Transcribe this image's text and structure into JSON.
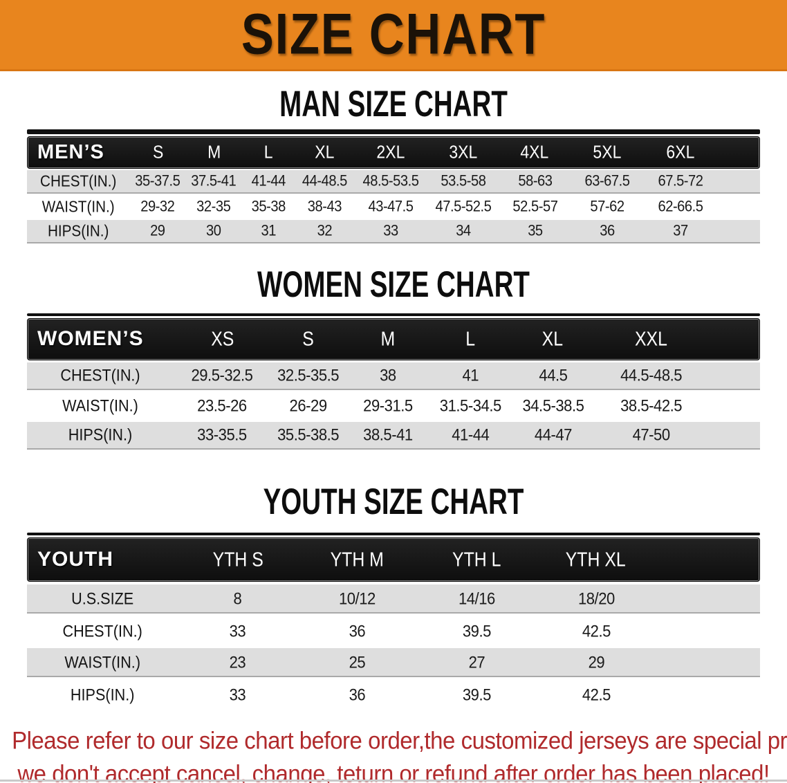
{
  "banner": {
    "title": "SIZE CHART"
  },
  "colors": {
    "banner_bg": "#E8851E",
    "header_bar_bg": "#141414",
    "header_bar_text": "#FFFFFF",
    "row_shade": "#DEDEDE",
    "row_plain": "#FFFFFF",
    "footer_text": "#B02A2C"
  },
  "sections": {
    "men": {
      "heading": "MAN SIZE CHART",
      "corner": "MEN’S",
      "sizes": [
        "S",
        "M",
        "L",
        "XL",
        "2XL",
        "3XL",
        "4XL",
        "5XL",
        "6XL"
      ],
      "rows": [
        {
          "label": "CHEST(IN.)",
          "values": [
            "35-37.5",
            "37.5-41",
            "41-44",
            "44-48.5",
            "48.5-53.5",
            "53.5-58",
            "58-63",
            "63-67.5",
            "67.5-72"
          ]
        },
        {
          "label": "WAIST(IN.)",
          "values": [
            "29-32",
            "32-35",
            "35-38",
            "38-43",
            "43-47.5",
            "47.5-52.5",
            "52.5-57",
            "57-62",
            "62-66.5"
          ]
        },
        {
          "label": "HIPS(IN.)",
          "values": [
            "29",
            "30",
            "31",
            "32",
            "33",
            "34",
            "35",
            "36",
            "37"
          ]
        }
      ]
    },
    "women": {
      "heading": "WOMEN SIZE CHART",
      "corner": "WOMEN’S",
      "sizes": [
        "XS",
        "S",
        "M",
        "L",
        "XL",
        "XXL"
      ],
      "rows": [
        {
          "label": "CHEST(IN.)",
          "values": [
            "29.5-32.5",
            "32.5-35.5",
            "38",
            "41",
            "44.5",
            "44.5-48.5"
          ]
        },
        {
          "label": "WAIST(IN.)",
          "values": [
            "23.5-26",
            "26-29",
            "29-31.5",
            "31.5-34.5",
            "34.5-38.5",
            "38.5-42.5"
          ]
        },
        {
          "label": "HIPS(IN.)",
          "values": [
            "33-35.5",
            "35.5-38.5",
            "38.5-41",
            "41-44",
            "44-47",
            "47-50"
          ]
        }
      ]
    },
    "youth": {
      "heading": "YOUTH SIZE CHART",
      "corner": "YOUTH",
      "sizes": [
        "YTH S",
        "YTH M",
        "YTH L",
        "YTH XL"
      ],
      "rows": [
        {
          "label": "U.S.SIZE",
          "values": [
            "8",
            "10/12",
            "14/16",
            "18/20"
          ]
        },
        {
          "label": "CHEST(IN.)",
          "values": [
            "33",
            "36",
            "39.5",
            "42.5"
          ]
        },
        {
          "label": "WAIST(IN.)",
          "values": [
            "23",
            "25",
            "27",
            "29"
          ]
        },
        {
          "label": "HIPS(IN.)",
          "values": [
            "33",
            "36",
            "39.5",
            "42.5"
          ]
        }
      ]
    }
  },
  "footer": {
    "line1": "Please refer to our size chart before order,the customized jerseys are special products,",
    "line2": "we don't accept cancel, change, teturn or refund after order has been placed!"
  }
}
